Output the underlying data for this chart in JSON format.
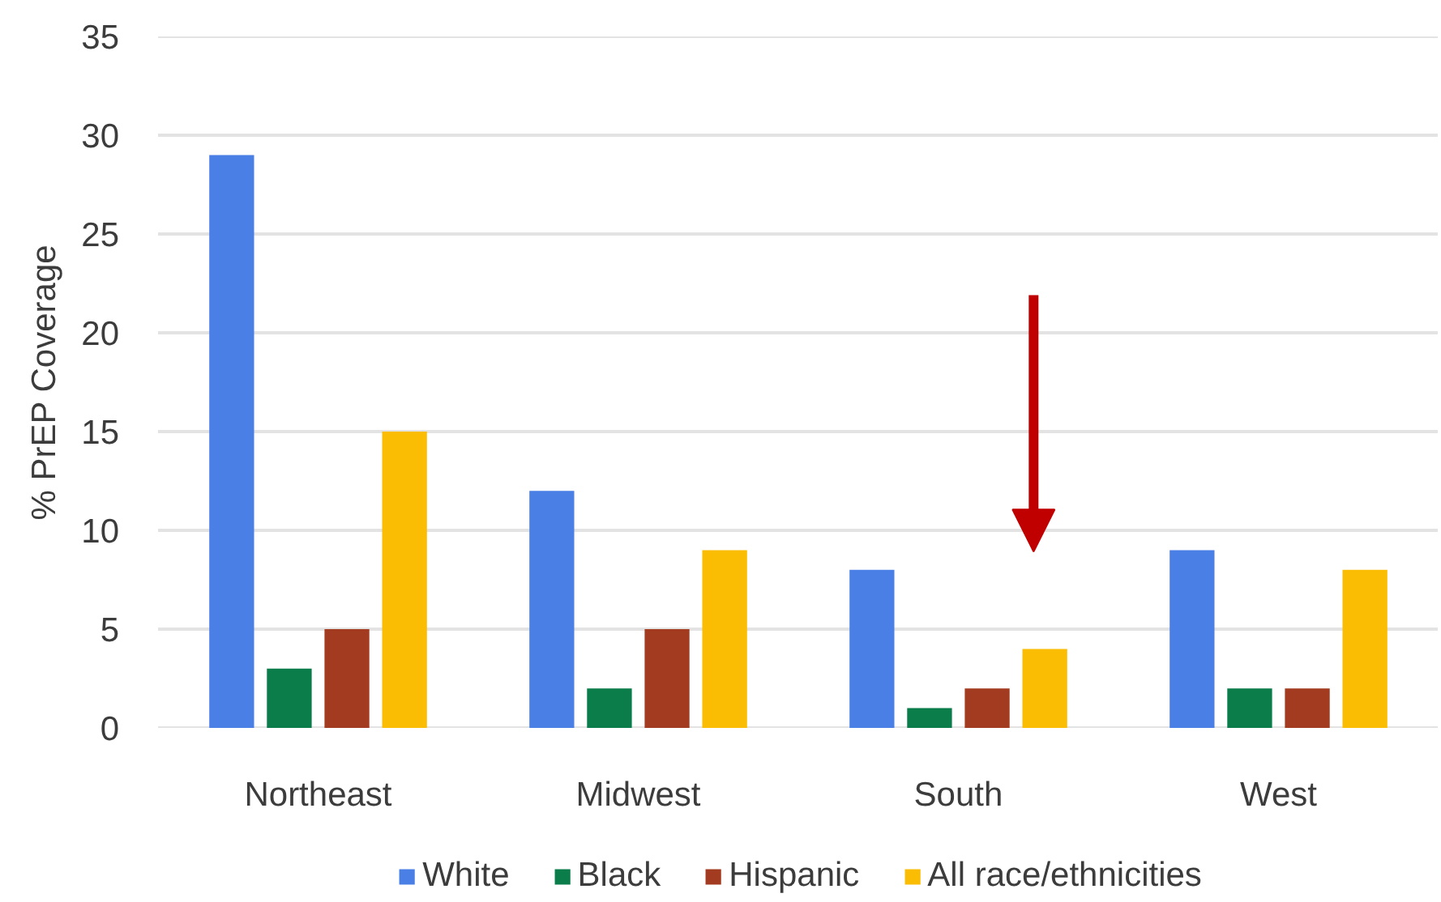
{
  "chart_data": {
    "type": "bar",
    "ylabel": "% PrEP Coverage",
    "categories": [
      "Northeast",
      "Midwest",
      "South",
      "West"
    ],
    "series": [
      {
        "name": "White",
        "color": "#4a7fe6",
        "values": [
          29,
          12,
          8,
          9
        ]
      },
      {
        "name": "Black",
        "color": "#0b7d4a",
        "values": [
          3,
          2,
          1,
          2
        ]
      },
      {
        "name": "Hispanic",
        "color": "#a23b1f",
        "values": [
          5,
          5,
          2,
          2
        ]
      },
      {
        "name": "All race/ethnicities",
        "color": "#fbbc04",
        "values": [
          15,
          9,
          4,
          8
        ]
      }
    ],
    "ylim": [
      0,
      35
    ],
    "yticks": [
      0,
      5,
      10,
      15,
      20,
      25,
      30,
      35
    ],
    "grid": "y",
    "legend": "bottom"
  }
}
